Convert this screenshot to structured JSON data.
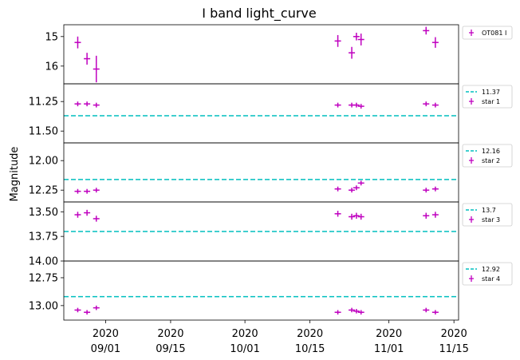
{
  "chart_data": {
    "type": "scatter",
    "title": "I band light_curve",
    "ylabel": "Magnitude",
    "xlabel": "",
    "x_range": [
      "2020-08-23",
      "2020-11-16"
    ],
    "x_ticks": [
      {
        "date": "2020-09-01",
        "line1": "2020",
        "line2": "09/01"
      },
      {
        "date": "2020-09-15",
        "line1": "2020",
        "line2": "09/15"
      },
      {
        "date": "2020-10-01",
        "line1": "2020",
        "line2": "10/01"
      },
      {
        "date": "2020-10-15",
        "line1": "2020",
        "line2": "10/15"
      },
      {
        "date": "2020-11-01",
        "line1": "2020",
        "line2": "11/01"
      },
      {
        "date": "2020-11-15",
        "line1": "2020",
        "line2": "11/15"
      }
    ],
    "colors": {
      "points": "#bf00bf",
      "reference": "#00bfbf"
    },
    "panels": [
      {
        "name": "OT081 I",
        "ylim": [
          16.6,
          14.6
        ],
        "yticks": [
          {
            "v": 15,
            "label": "15"
          },
          {
            "v": 16,
            "label": "16"
          }
        ],
        "reference": null,
        "points": [
          {
            "x": "2020-08-26",
            "y": 15.2,
            "err": 0.2
          },
          {
            "x": "2020-08-28",
            "y": 15.75,
            "err": 0.2
          },
          {
            "x": "2020-08-30",
            "y": 16.1,
            "err": 0.45
          },
          {
            "x": "2020-10-21",
            "y": 15.15,
            "err": 0.2
          },
          {
            "x": "2020-10-24",
            "y": 15.55,
            "err": 0.2
          },
          {
            "x": "2020-10-25",
            "y": 15.0,
            "err": 0.13
          },
          {
            "x": "2020-10-26",
            "y": 15.1,
            "err": 0.2
          },
          {
            "x": "2020-11-09",
            "y": 14.8,
            "err": 0.13
          },
          {
            "x": "2020-11-11",
            "y": 15.2,
            "err": 0.18
          }
        ]
      },
      {
        "name": "star 1",
        "ylim": [
          11.6,
          11.1
        ],
        "yticks": [
          {
            "v": 11.25,
            "label": "11.25"
          },
          {
            "v": 11.5,
            "label": "11.50"
          }
        ],
        "reference": {
          "value": 11.37,
          "label": "11.37"
        },
        "points": [
          {
            "x": "2020-08-26",
            "y": 11.27,
            "err": 0.02
          },
          {
            "x": "2020-08-28",
            "y": 11.27,
            "err": 0.02
          },
          {
            "x": "2020-08-30",
            "y": 11.28,
            "err": 0.02
          },
          {
            "x": "2020-10-21",
            "y": 11.28,
            "err": 0.02
          },
          {
            "x": "2020-10-24",
            "y": 11.28,
            "err": 0.02
          },
          {
            "x": "2020-10-25",
            "y": 11.28,
            "err": 0.02
          },
          {
            "x": "2020-10-26",
            "y": 11.29,
            "err": 0.02
          },
          {
            "x": "2020-11-09",
            "y": 11.27,
            "err": 0.02
          },
          {
            "x": "2020-11-11",
            "y": 11.28,
            "err": 0.02
          }
        ]
      },
      {
        "name": "star 2",
        "ylim": [
          12.35,
          11.85
        ],
        "yticks": [
          {
            "v": 12.0,
            "label": "12.00"
          },
          {
            "v": 12.25,
            "label": "12.25"
          }
        ],
        "reference": {
          "value": 12.16,
          "label": "12.16"
        },
        "points": [
          {
            "x": "2020-08-26",
            "y": 12.26,
            "err": 0.02
          },
          {
            "x": "2020-08-28",
            "y": 12.26,
            "err": 0.02
          },
          {
            "x": "2020-08-30",
            "y": 12.25,
            "err": 0.02
          },
          {
            "x": "2020-10-21",
            "y": 12.24,
            "err": 0.02
          },
          {
            "x": "2020-10-24",
            "y": 12.25,
            "err": 0.02
          },
          {
            "x": "2020-10-25",
            "y": 12.23,
            "err": 0.02
          },
          {
            "x": "2020-10-26",
            "y": 12.19,
            "err": 0.02
          },
          {
            "x": "2020-11-09",
            "y": 12.25,
            "err": 0.02
          },
          {
            "x": "2020-11-11",
            "y": 12.24,
            "err": 0.02
          }
        ]
      },
      {
        "name": "star 3",
        "ylim": [
          14.0,
          13.4
        ],
        "yticks": [
          {
            "v": 13.5,
            "label": "13.50"
          },
          {
            "v": 13.75,
            "label": "13.75"
          },
          {
            "v": 14.0,
            "label": "14.00"
          }
        ],
        "reference": {
          "value": 13.7,
          "label": "13.7"
        },
        "points": [
          {
            "x": "2020-08-26",
            "y": 13.53,
            "err": 0.03
          },
          {
            "x": "2020-08-28",
            "y": 13.51,
            "err": 0.03
          },
          {
            "x": "2020-08-30",
            "y": 13.57,
            "err": 0.03
          },
          {
            "x": "2020-10-21",
            "y": 13.52,
            "err": 0.03
          },
          {
            "x": "2020-10-24",
            "y": 13.55,
            "err": 0.03
          },
          {
            "x": "2020-10-25",
            "y": 13.54,
            "err": 0.03
          },
          {
            "x": "2020-10-26",
            "y": 13.55,
            "err": 0.03
          },
          {
            "x": "2020-11-09",
            "y": 13.54,
            "err": 0.03
          },
          {
            "x": "2020-11-11",
            "y": 13.53,
            "err": 0.03
          }
        ]
      },
      {
        "name": "star 4",
        "ylim": [
          13.13,
          12.6
        ],
        "yticks": [
          {
            "v": 12.75,
            "label": "12.75"
          },
          {
            "v": 13.0,
            "label": "13.00"
          }
        ],
        "reference": {
          "value": 12.92,
          "label": "12.92"
        },
        "points": [
          {
            "x": "2020-08-26",
            "y": 13.04,
            "err": 0.02
          },
          {
            "x": "2020-08-28",
            "y": 13.06,
            "err": 0.02
          },
          {
            "x": "2020-08-30",
            "y": 13.02,
            "err": 0.02
          },
          {
            "x": "2020-10-21",
            "y": 13.06,
            "err": 0.02
          },
          {
            "x": "2020-10-24",
            "y": 13.04,
            "err": 0.02
          },
          {
            "x": "2020-10-25",
            "y": 13.05,
            "err": 0.02
          },
          {
            "x": "2020-10-26",
            "y": 13.06,
            "err": 0.02
          },
          {
            "x": "2020-11-09",
            "y": 13.04,
            "err": 0.02
          },
          {
            "x": "2020-11-11",
            "y": 13.06,
            "err": 0.02
          }
        ]
      }
    ]
  }
}
